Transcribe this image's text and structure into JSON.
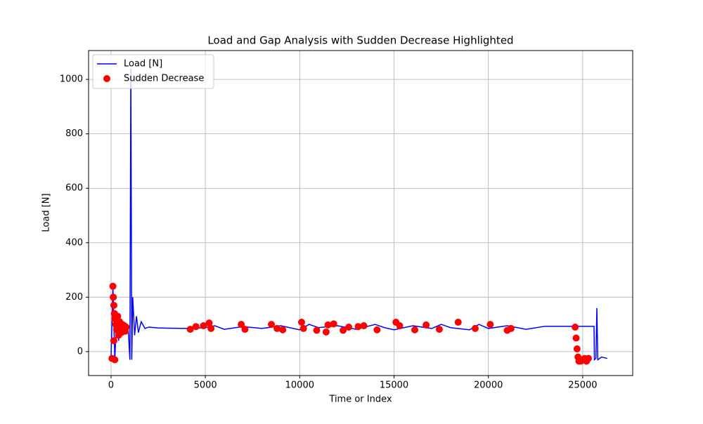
{
  "chart_data": {
    "type": "line",
    "title": "Load and Gap Analysis with Sudden Decrease Highlighted",
    "x_label": "Time or Index",
    "y_label": "Load [N]",
    "xlim": [
      -1190,
      27650
    ],
    "ylim": [
      -88,
      1106
    ],
    "xticks": [
      0,
      5000,
      10000,
      15000,
      20000,
      25000
    ],
    "yticks": [
      0,
      200,
      400,
      600,
      800,
      1000
    ],
    "grid": true,
    "legend": "upper left",
    "series": [
      {
        "name": "Load [N]",
        "type": "line",
        "color": "#0000ff",
        "x": [
          0,
          100,
          200,
          300,
          400,
          500,
          600,
          700,
          800,
          900,
          1000,
          1050,
          1100,
          1150,
          1250,
          1350,
          1450,
          1600,
          1800,
          2000,
          2500,
          3000,
          4000,
          5000,
          5500,
          6000,
          7000,
          8000,
          9000,
          10000,
          10500,
          11000,
          12000,
          13000,
          14000,
          14500,
          15000,
          16000,
          17000,
          17500,
          18000,
          19000,
          19500,
          20000,
          21000,
          22000,
          23000,
          24000,
          25600,
          25620,
          25700,
          25750,
          25800,
          26000,
          26300
        ],
        "values": [
          -25,
          240,
          -30,
          130,
          40,
          110,
          60,
          100,
          70,
          95,
          -30,
          1040,
          -30,
          200,
          60,
          130,
          70,
          110,
          85,
          90,
          87,
          86,
          85,
          88,
          95,
          82,
          92,
          85,
          95,
          80,
          100,
          88,
          95,
          82,
          100,
          88,
          80,
          95,
          85,
          100,
          88,
          80,
          100,
          85,
          95,
          82,
          93,
          93,
          93,
          -30,
          -25,
          160,
          -30,
          -20,
          -25
        ]
      },
      {
        "name": "Sudden Decrease",
        "type": "scatter",
        "color": "#ff0000",
        "x": [
          50,
          100,
          120,
          150,
          180,
          200,
          250,
          300,
          350,
          400,
          450,
          500,
          550,
          600,
          650,
          700,
          750,
          800,
          150,
          200,
          4200,
          4500,
          4900,
          5200,
          5300,
          6900,
          7100,
          8500,
          8800,
          9100,
          10100,
          10200,
          10900,
          11400,
          11500,
          11800,
          12300,
          12600,
          13100,
          13400,
          14100,
          15100,
          15300,
          16100,
          16700,
          17400,
          18400,
          19300,
          20100,
          21000,
          21200,
          24600,
          24650,
          24700,
          24750,
          24800,
          24900,
          25000,
          25100,
          25200,
          25300
        ],
        "values": [
          -25,
          240,
          200,
          170,
          140,
          120,
          100,
          80,
          130,
          60,
          110,
          90,
          70,
          100,
          85,
          95,
          75,
          90,
          40,
          -30,
          82,
          92,
          95,
          105,
          85,
          100,
          82,
          100,
          85,
          80,
          108,
          85,
          78,
          72,
          98,
          102,
          78,
          90,
          92,
          95,
          80,
          108,
          95,
          80,
          98,
          82,
          108,
          85,
          100,
          78,
          85,
          90,
          50,
          10,
          -20,
          -35,
          -35,
          -30,
          -25,
          -35,
          -25
        ]
      }
    ]
  }
}
